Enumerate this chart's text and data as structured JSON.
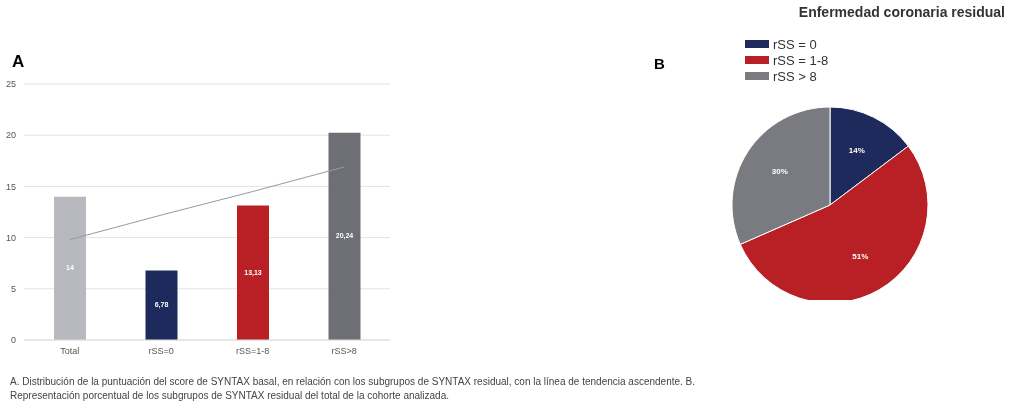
{
  "chart_data": [
    {
      "type": "bar",
      "annotations": [
        "A",
        "A. Distribución de la puntuación del score de SYNTAX basal, en relación con los subgrupos de SYNTAX residual, con la línea de tendencia ascendente. B. Representación porcentual de los subgrupos de SYNTAX residual del total de la cohorte analizada."
      ],
      "categories": [
        "Total",
        "rSS=0",
        "rSS=1-8",
        "rSS>8"
      ],
      "ylim": [
        0,
        25
      ],
      "yticks": [
        0,
        5,
        10,
        15,
        20,
        25
      ],
      "grid": "y",
      "series": [
        {
          "type": "bar",
          "colors": [
            "#b8b9bf",
            "#1f2a5c",
            "#b82025",
            "#6e6f75"
          ],
          "values": [
            14,
            6.78,
            13.13,
            20.24
          ],
          "value_labels": [
            "14",
            "6,78",
            "13,13",
            "20,24"
          ]
        },
        {
          "type": "line",
          "color": "#9a9a9a",
          "values": [
            9.8,
            12.2,
            14.5,
            16.9
          ],
          "marker": "none"
        }
      ]
    },
    {
      "type": "pie",
      "title": "Enfermedad coronaria residual",
      "annotations": [
        "B"
      ],
      "categories": [
        "rSS = 0",
        "rSS = 1-8",
        "rSS > 8"
      ],
      "values": [
        14,
        51,
        30
      ],
      "value_labels": [
        "14%",
        "51%",
        "30%"
      ],
      "colors": [
        "#1f2a5c",
        "#b82025",
        "#7a7b80"
      ],
      "legend": "top left"
    }
  ]
}
